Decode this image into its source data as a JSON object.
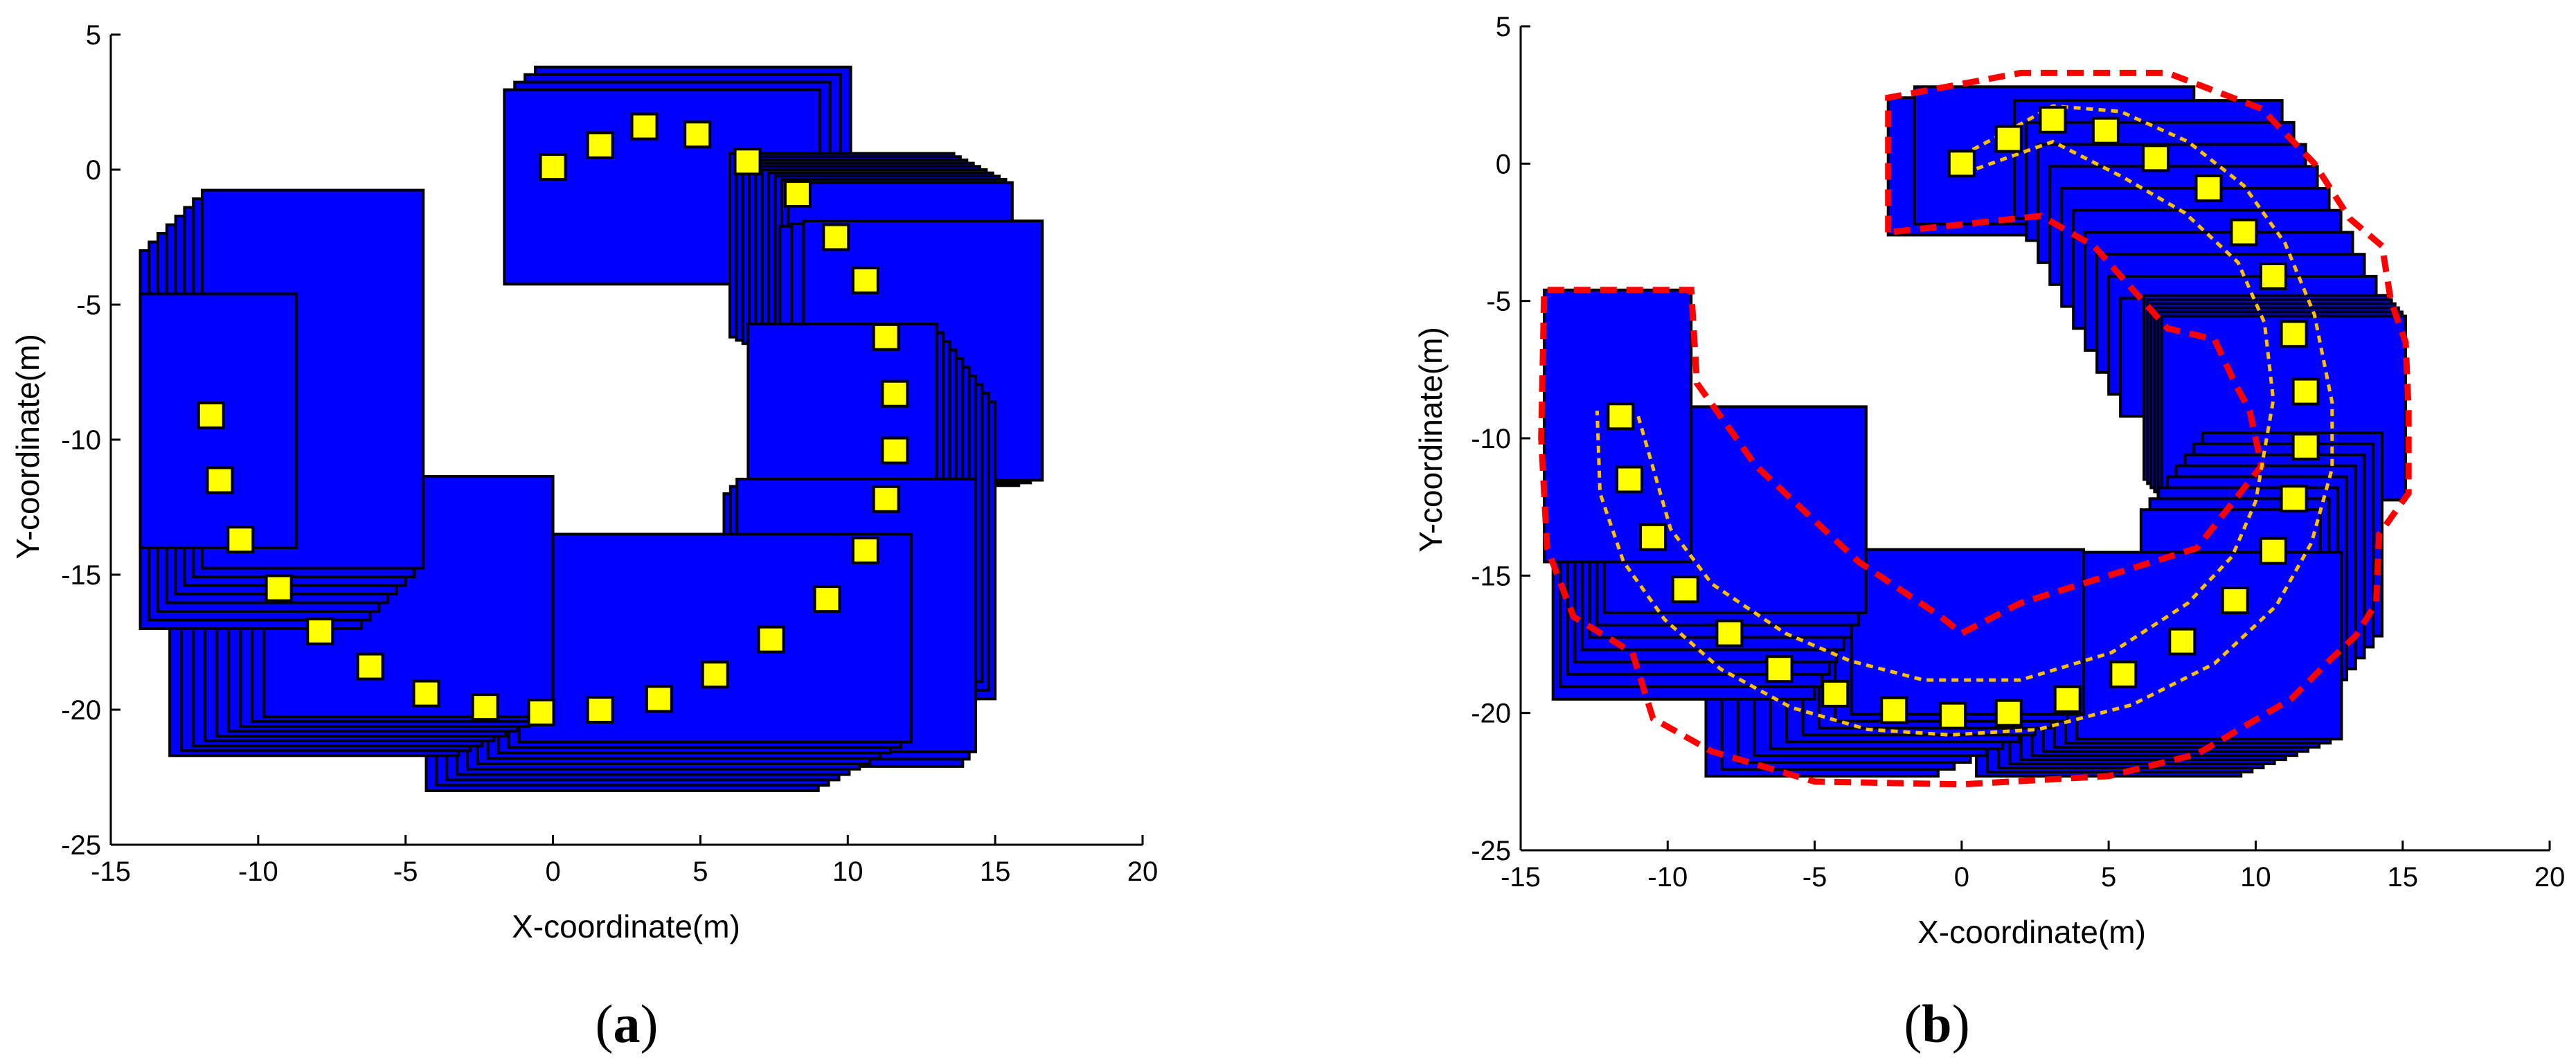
{
  "chart_data": [
    {
      "type": "scatter",
      "panel_label": "a",
      "xlabel": "X-coordinate(m)",
      "ylabel": "Y-coordinate(m)",
      "xlim": [
        -15,
        20
      ],
      "ylim": [
        -25,
        5
      ],
      "xticks": [
        -15,
        -10,
        -5,
        0,
        5,
        10,
        15,
        20
      ],
      "yticks": [
        5,
        0,
        -5,
        -10,
        -15,
        -20,
        -25
      ],
      "grid": false,
      "colors": {
        "rect_fill": "#0000ff",
        "rect_edge": "#000000",
        "marker_fill": "#ffff00",
        "marker_edge": "#000000"
      },
      "series": [
        {
          "marker": "square",
          "points": [
            [
              0,
              0.1
            ],
            [
              1.6,
              0.9
            ],
            [
              3.1,
              1.6
            ],
            [
              4.9,
              1.3
            ],
            [
              6.6,
              0.3
            ],
            [
              8.3,
              -0.9
            ],
            [
              9.6,
              -2.5
            ],
            [
              10.6,
              -4.1
            ],
            [
              11.3,
              -6.2
            ],
            [
              11.6,
              -8.3
            ],
            [
              11.6,
              -10.4
            ],
            [
              11.3,
              -12.2
            ],
            [
              10.6,
              -14.1
            ],
            [
              9.3,
              -15.9
            ],
            [
              7.4,
              -17.4
            ],
            [
              5.5,
              -18.7
            ],
            [
              3.6,
              -19.6
            ],
            [
              1.6,
              -20
            ],
            [
              -0.4,
              -20.1
            ],
            [
              -2.3,
              -19.9
            ],
            [
              -4.3,
              -19.4
            ],
            [
              -6.2,
              -18.4
            ],
            [
              -7.9,
              -17.1
            ],
            [
              -9.3,
              -15.5
            ],
            [
              -10.6,
              -13.7
            ],
            [
              -11.3,
              -11.5
            ],
            [
              -11.6,
              -9.1
            ]
          ]
        }
      ],
      "rect_groups": [
        {
          "x0": -0.6,
          "x1": 10.1,
          "y0": -3.4,
          "y1": 3.8,
          "n": 4,
          "dx": -0.35,
          "dy": -0.28
        },
        {
          "x0": 6.0,
          "x1": 13.6,
          "y0": -6.2,
          "y1": 0.6,
          "n": 10,
          "dx": 0.22,
          "dy": -0.12
        },
        {
          "x0": 7.7,
          "x1": 15.8,
          "y0": -11.7,
          "y1": -2.1,
          "n": 3,
          "dx": 0.4,
          "dy": 0.1
        },
        {
          "x0": 8.6,
          "x1": 15.0,
          "y0": -19.6,
          "y1": -8.6,
          "n": 10,
          "dx": -0.22,
          "dy": 0.32
        },
        {
          "x0": 5.8,
          "x1": 13.9,
          "y0": -22.1,
          "y1": -12.0,
          "n": 3,
          "dx": 0.22,
          "dy": 0.27
        },
        {
          "x0": -4.3,
          "x1": 9.0,
          "y0": -23.0,
          "y1": -15.3,
          "n": 10,
          "dx": 0.35,
          "dy": 0.2
        },
        {
          "x0": -13.0,
          "x1": -3.2,
          "y0": -21.7,
          "y1": -12.8,
          "n": 9,
          "dx": 0.4,
          "dy": 0.18
        },
        {
          "x0": -14.0,
          "x1": -6.5,
          "y0": -17.0,
          "y1": -3.0,
          "n": 8,
          "dx": 0.3,
          "dy": 0.32
        },
        {
          "x0": -14.0,
          "x1": -8.7,
          "y0": -14.0,
          "y1": -4.6,
          "n": 1,
          "dx": 0.0,
          "dy": 0.0
        }
      ]
    },
    {
      "type": "scatter",
      "panel_label": "b",
      "xlabel": "X-coordinate(m)",
      "ylabel": "Y-coordinate(m)",
      "xlim": [
        -15,
        20
      ],
      "ylim": [
        -25,
        5
      ],
      "xticks": [
        -15,
        -10,
        -5,
        0,
        5,
        10,
        15,
        20
      ],
      "yticks": [
        5,
        0,
        -5,
        -10,
        -15,
        -20,
        -25
      ],
      "grid": false,
      "colors": {
        "rect_fill": "#0000ff",
        "rect_edge": "#000000",
        "marker_fill": "#ffff00",
        "marker_edge": "#000000",
        "envelope": "#ff0000",
        "path_bounds": "#ffc000"
      },
      "series": [
        {
          "marker": "square",
          "points": [
            [
              0,
              0
            ],
            [
              1.6,
              0.9
            ],
            [
              3.1,
              1.6
            ],
            [
              4.9,
              1.2
            ],
            [
              6.6,
              0.2
            ],
            [
              8.4,
              -0.9
            ],
            [
              9.6,
              -2.5
            ],
            [
              10.6,
              -4.1
            ],
            [
              11.3,
              -6.2
            ],
            [
              11.7,
              -8.3
            ],
            [
              11.7,
              -10.3
            ],
            [
              11.3,
              -12.2
            ],
            [
              10.6,
              -14.1
            ],
            [
              9.3,
              -15.9
            ],
            [
              7.5,
              -17.4
            ],
            [
              5.5,
              -18.6
            ],
            [
              3.6,
              -19.5
            ],
            [
              1.6,
              -20
            ],
            [
              -0.3,
              -20.1
            ],
            [
              -2.3,
              -19.9
            ],
            [
              -4.3,
              -19.3
            ],
            [
              -6.2,
              -18.4
            ],
            [
              -7.9,
              -17.1
            ],
            [
              -9.4,
              -15.5
            ],
            [
              -10.5,
              -13.6
            ],
            [
              -11.3,
              -11.5
            ],
            [
              -11.6,
              -9.2
            ]
          ]
        }
      ],
      "envelope": [
        [
          -2.5,
          -2.5
        ],
        [
          -2.5,
          2.4
        ],
        [
          2.0,
          3.3
        ],
        [
          7.0,
          3.3
        ],
        [
          10.2,
          2.0
        ],
        [
          12.0,
          0.0
        ],
        [
          13.2,
          -2.0
        ],
        [
          14.3,
          -3.0
        ],
        [
          14.6,
          -5.0
        ],
        [
          15.1,
          -6.5
        ],
        [
          15.2,
          -9.0
        ],
        [
          15.2,
          -12.0
        ],
        [
          14.2,
          -13.5
        ],
        [
          14.1,
          -16.0
        ],
        [
          13.4,
          -17.2
        ],
        [
          12.6,
          -18.0
        ],
        [
          11.2,
          -19.5
        ],
        [
          8.0,
          -21.5
        ],
        [
          5.0,
          -22.3
        ],
        [
          0.0,
          -22.6
        ],
        [
          -5.0,
          -22.5
        ],
        [
          -8.5,
          -21.4
        ],
        [
          -10.5,
          -20.2
        ],
        [
          -11.2,
          -17.8
        ],
        [
          -13.2,
          -16.5
        ],
        [
          -14.1,
          -14.0
        ],
        [
          -14.3,
          -10.0
        ],
        [
          -14.2,
          -4.6
        ],
        [
          -9.2,
          -4.6
        ],
        [
          -9.0,
          -8.0
        ],
        [
          -7.0,
          -11.0
        ],
        [
          -3.5,
          -14.5
        ],
        [
          -0.7,
          -16.5
        ],
        [
          0.0,
          -17.1
        ],
        [
          2.0,
          -16.0
        ],
        [
          5.0,
          -15.0
        ],
        [
          8.0,
          -14.0
        ],
        [
          10.2,
          -11.0
        ],
        [
          9.8,
          -9.0
        ],
        [
          9.3,
          -8.0
        ],
        [
          8.6,
          -6.4
        ],
        [
          7.0,
          -6.0
        ],
        [
          4.5,
          -3.0
        ],
        [
          2.7,
          -1.9
        ],
        [
          1.0,
          -2.1
        ],
        [
          -2.5,
          -2.5
        ]
      ],
      "path_bounds": [
        {
          "points": [
            [
              -11.0,
              -9.2
            ],
            [
              -9.9,
              -13.3
            ],
            [
              -8.5,
              -15.3
            ],
            [
              -6.0,
              -17.1
            ],
            [
              -3.8,
              -18.1
            ],
            [
              -1.3,
              -18.8
            ],
            [
              2.0,
              -18.8
            ],
            [
              5.1,
              -17.8
            ],
            [
              7.7,
              -16.0
            ],
            [
              9.2,
              -14.3
            ],
            [
              10.0,
              -12.3
            ],
            [
              10.6,
              -8.6
            ],
            [
              10.3,
              -5.8
            ],
            [
              9.4,
              -3.6
            ],
            [
              7.6,
              -1.8
            ],
            [
              5.5,
              -0.5
            ],
            [
              3.1,
              0.8
            ],
            [
              0.2,
              -0.3
            ]
          ]
        },
        {
          "points": [
            [
              0.0,
              0.3
            ],
            [
              1.6,
              1.2
            ],
            [
              3.1,
              2.1
            ],
            [
              5.4,
              1.9
            ],
            [
              7.7,
              0.8
            ],
            [
              9.6,
              -0.8
            ],
            [
              11.0,
              -2.9
            ],
            [
              12.0,
              -5.5
            ],
            [
              12.6,
              -8.7
            ],
            [
              12.6,
              -11.1
            ],
            [
              11.9,
              -13.8
            ],
            [
              10.7,
              -16.1
            ],
            [
              8.6,
              -18.2
            ],
            [
              5.8,
              -19.7
            ],
            [
              2.6,
              -20.6
            ],
            [
              -0.4,
              -20.8
            ],
            [
              -3.2,
              -20.6
            ],
            [
              -5.8,
              -19.8
            ],
            [
              -8.2,
              -18.4
            ],
            [
              -10.1,
              -16.6
            ],
            [
              -11.5,
              -14.5
            ],
            [
              -12.3,
              -12.0
            ],
            [
              -12.4,
              -9.0
            ]
          ]
        }
      ],
      "rect_groups": [
        {
          "x0": -2.5,
          "x1": 7.0,
          "y0": -2.6,
          "y1": 2.4,
          "n": 2,
          "dx": 0.9,
          "dy": 0.4
        },
        {
          "x0": 1.8,
          "x1": 10.9,
          "y0": -2.0,
          "y1": 2.3,
          "n": 10,
          "dx": 0.4,
          "dy": -0.8
        },
        {
          "x0": 6.2,
          "x1": 14.5,
          "y0": -11.5,
          "y1": -4.8,
          "n": 6,
          "dx": 0.12,
          "dy": -0.15
        },
        {
          "x0": 8.2,
          "x1": 14.3,
          "y0": -17.2,
          "y1": -9.8,
          "n": 8,
          "dx": -0.3,
          "dy": -0.4
        },
        {
          "x0": 0.5,
          "x1": 9.5,
          "y0": -22.3,
          "y1": -15.5,
          "n": 10,
          "dx": 0.38,
          "dy": 0.15
        },
        {
          "x0": -8.7,
          "x1": -0.8,
          "y0": -22.3,
          "y1": -16.3,
          "n": 10,
          "dx": 0.55,
          "dy": 0.25
        },
        {
          "x0": -13.9,
          "x1": -5.0,
          "y0": -19.5,
          "y1": -12.0,
          "n": 8,
          "dx": 0.25,
          "dy": 0.45
        },
        {
          "x0": -14.2,
          "x1": -9.2,
          "y0": -14.5,
          "y1": -4.6,
          "n": 1,
          "dx": 0.0,
          "dy": 0.0
        }
      ]
    }
  ]
}
